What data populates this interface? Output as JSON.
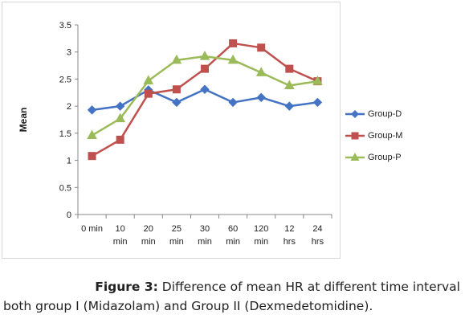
{
  "chart_data": {
    "type": "line",
    "title": "",
    "xlabel": "",
    "ylabel": "Mean",
    "ylim": [
      0,
      3.5
    ],
    "yticks": [
      "0",
      "0.5",
      "1",
      "1.5",
      "2",
      "2.5",
      "3",
      "3.5"
    ],
    "categories": [
      [
        "0 min",
        ""
      ],
      [
        "10",
        "min"
      ],
      [
        "20",
        "min"
      ],
      [
        "25",
        "min"
      ],
      [
        "30",
        "min"
      ],
      [
        "60",
        "min"
      ],
      [
        "120",
        "min"
      ],
      [
        "12",
        "hrs"
      ],
      [
        "24",
        "hrs"
      ]
    ],
    "grid": false,
    "legend_position": "right",
    "series": [
      {
        "name": "Group-D",
        "color": "#4472c4",
        "marker": "diamond",
        "values": [
          1.93,
          2.0,
          2.3,
          2.07,
          2.31,
          2.07,
          2.16,
          2.0,
          2.07
        ]
      },
      {
        "name": "Group-M",
        "color": "#c0504d",
        "marker": "square",
        "values": [
          1.08,
          1.38,
          2.23,
          2.31,
          2.69,
          3.16,
          3.08,
          2.69,
          2.46
        ]
      },
      {
        "name": "Group-P",
        "color": "#9bbb59",
        "marker": "triangle",
        "values": [
          1.46,
          1.77,
          2.47,
          2.85,
          2.92,
          2.85,
          2.62,
          2.38,
          2.46
        ]
      }
    ]
  },
  "caption": {
    "label": "Figure 3:",
    "line1_rest": " Difference of mean HR at different  time interval",
    "line2": "both group I (Midazolam) and Group II (Dexmedetomidine)."
  }
}
